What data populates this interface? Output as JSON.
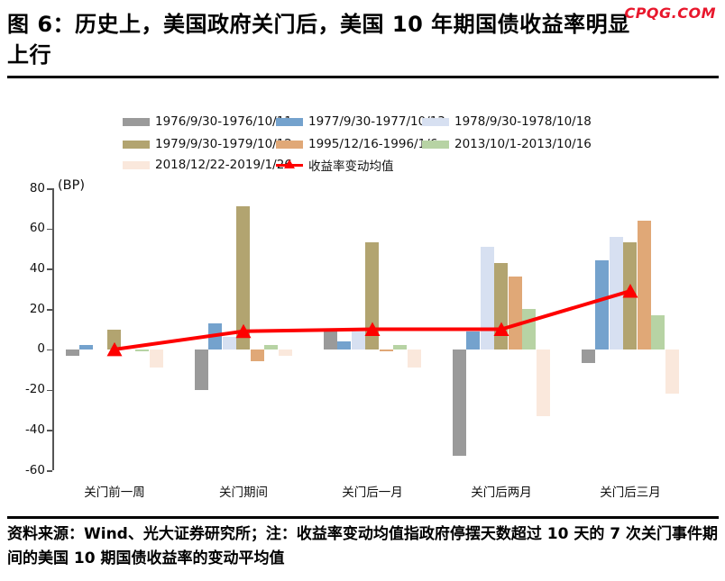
{
  "page": {
    "watermark": "CPQG.COM"
  },
  "title": {
    "line1": "图 6：历史上，美国政府关门后，美国 10 年期国债收益率明显",
    "line2": "上行"
  },
  "footer": {
    "text": "资料来源：Wind、光大证券研究所；注：收益率变动均值指政府停摆天数超过 10 天的 7 次关门事件期间的美国 10 期国债收益率的变动平均值"
  },
  "chart_data": {
    "type": "bar",
    "unit_label": "(BP)",
    "categories": [
      "关门前一周",
      "关门期间",
      "关门后一月",
      "关门后两月",
      "关门后三月"
    ],
    "series": [
      {
        "name": "1976/9/30-1976/10/11",
        "color": "#9A9A9A",
        "values": [
          -3,
          -20,
          9,
          -53,
          -7
        ]
      },
      {
        "name": "1977/9/30-1977/10/13",
        "color": "#74A2CD",
        "values": [
          2,
          13,
          4,
          9,
          44
        ]
      },
      {
        "name": "1978/9/30-1978/10/18",
        "color": "#D7E0F1",
        "values": [
          0,
          6,
          9,
          51,
          56
        ]
      },
      {
        "name": "1979/9/30-1979/10/12",
        "color": "#B2A470",
        "values": [
          10,
          71,
          53,
          43,
          53
        ]
      },
      {
        "name": "1995/12/16-1996/1/6",
        "color": "#E0A877",
        "values": [
          0,
          -6,
          -1,
          36,
          64
        ]
      },
      {
        "name": "2013/10/1-2013/10/16",
        "color": "#B7D3A4",
        "values": [
          -1,
          2,
          2,
          20,
          17
        ]
      },
      {
        "name": "2018/12/22-2019/1/26",
        "color": "#FAE8DC",
        "values": [
          -9,
          -3,
          -9,
          -33,
          -22
        ]
      }
    ],
    "mean_line": {
      "name": "收益率变动均值",
      "color": "#FE0000",
      "values": [
        0,
        9,
        10,
        10,
        29
      ]
    },
    "ylim": [
      -60,
      80
    ],
    "yticks": [
      80,
      60,
      40,
      20,
      0,
      -20,
      -40,
      -60
    ],
    "grid": false,
    "legend_position": "top"
  }
}
